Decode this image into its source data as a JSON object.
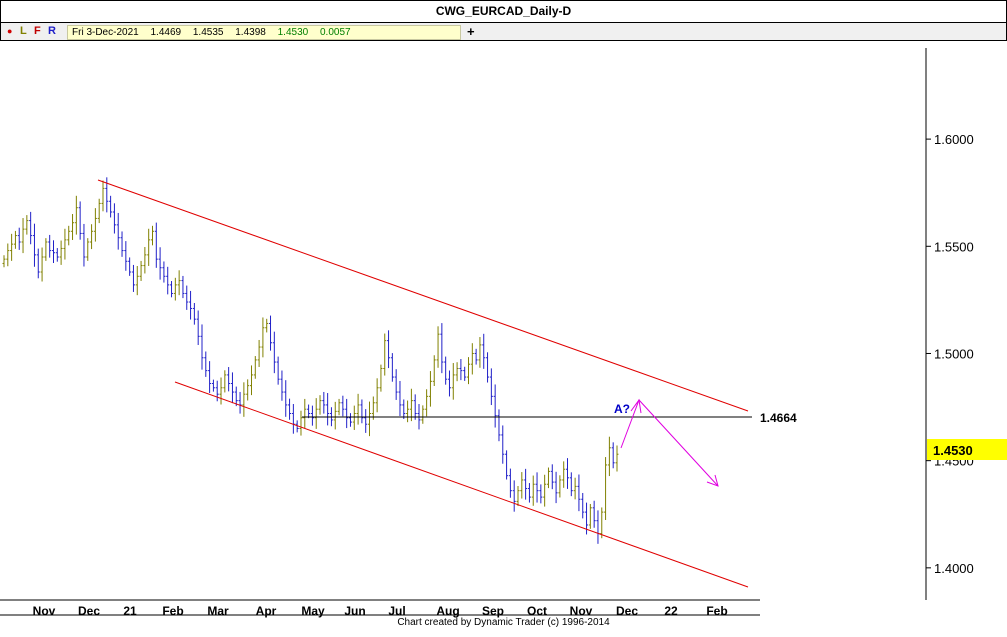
{
  "title": "CWG_EURCAD_Daily-D",
  "toolbar": {
    "flags": [
      "L",
      "F",
      "R"
    ],
    "date": "Fri 3-Dec-2021",
    "open": "1.4469",
    "high": "1.4535",
    "low": "1.4398",
    "close": "1.4530",
    "change": "0.0057",
    "plus_label": "+"
  },
  "footer": "Chart created by Dynamic Trader  (c) 1996-2014",
  "colors": {
    "bar_up": "#808000",
    "bar_down": "#2020c8",
    "channel": "#e00000",
    "level_line": "#000000",
    "projection": "#e000e0",
    "price_tag": "#ffff00"
  },
  "chart_data": {
    "type": "ohlc",
    "x_ticks": [
      "Nov",
      "Dec",
      "21",
      "Feb",
      "Mar",
      "Apr",
      "May",
      "Jun",
      "Jul",
      "Aug",
      "Sep",
      "Oct",
      "Nov",
      "Dec",
      "22",
      "Feb"
    ],
    "y_ticks": [
      "1.6000",
      "1.5500",
      "1.5000",
      "1.4500",
      "1.4000"
    ],
    "ylim": [
      1.385,
      1.6425
    ],
    "current_price": "1.4530",
    "level": {
      "value": 1.4664,
      "label": "1.4664"
    },
    "annotation": "A?",
    "closes": [
      1.544,
      1.548,
      1.551,
      1.555,
      1.552,
      1.558,
      1.562,
      1.555,
      1.546,
      1.538,
      1.545,
      1.552,
      1.548,
      1.547,
      1.545,
      1.549,
      1.553,
      1.557,
      1.561,
      1.568,
      1.556,
      1.545,
      1.552,
      1.557,
      1.563,
      1.57,
      1.577,
      1.571,
      1.566,
      1.56,
      1.554,
      1.548,
      1.543,
      1.538,
      1.532,
      1.536,
      1.541,
      1.546,
      1.553,
      1.557,
      1.544,
      1.54,
      1.536,
      1.532,
      1.528,
      1.532,
      1.534,
      1.528,
      1.524,
      1.521,
      1.516,
      1.508,
      1.498,
      1.492,
      1.486,
      1.484,
      1.481,
      1.484,
      1.49,
      1.486,
      1.482,
      1.478,
      1.476,
      1.481,
      1.485,
      1.49,
      1.497,
      1.503,
      1.512,
      1.514,
      1.505,
      1.496,
      1.488,
      1.482,
      1.476,
      1.472,
      1.467,
      1.465,
      1.47,
      1.474,
      1.472,
      1.47,
      1.474,
      1.478,
      1.476,
      1.472,
      1.469,
      1.473,
      1.477,
      1.474,
      1.47,
      1.468,
      1.472,
      1.476,
      1.47,
      1.467,
      1.472,
      1.477,
      1.484,
      1.493,
      1.506,
      1.498,
      1.489,
      1.482,
      1.476,
      1.472,
      1.474,
      1.478,
      1.472,
      1.469,
      1.474,
      1.48,
      1.487,
      1.497,
      1.509,
      1.496,
      1.488,
      1.484,
      1.49,
      1.493,
      1.492,
      1.489,
      1.495,
      1.5,
      1.497,
      1.504,
      1.498,
      1.489,
      1.48,
      1.471,
      1.462,
      1.453,
      1.443,
      1.436,
      1.431,
      1.436,
      1.441,
      1.437,
      1.433,
      1.439,
      1.436,
      1.433,
      1.439,
      1.445,
      1.44,
      1.435,
      1.441,
      1.446,
      1.442,
      1.436,
      1.438,
      1.432,
      1.426,
      1.42,
      1.428,
      1.422,
      1.416,
      1.426,
      1.448,
      1.456,
      1.449,
      1.453
    ]
  }
}
